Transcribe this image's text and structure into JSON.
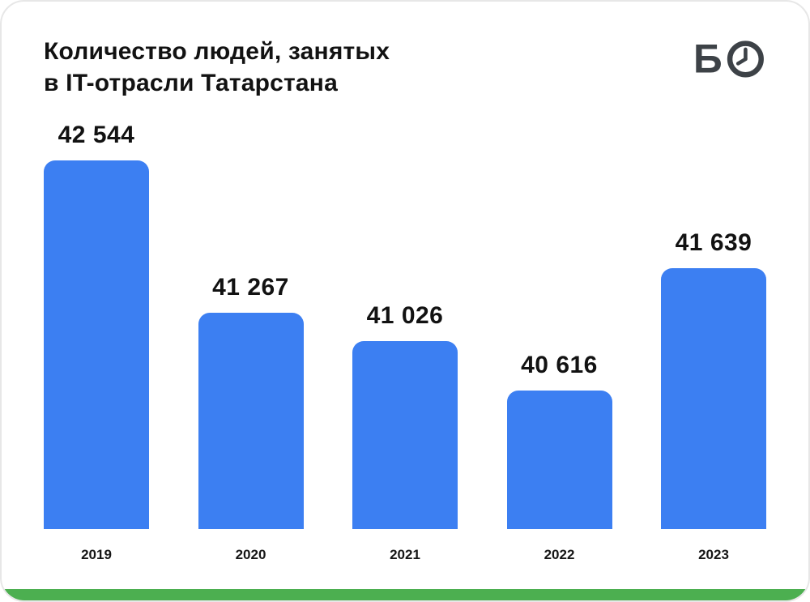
{
  "header": {
    "title_line1": "Количество людей, занятых",
    "title_line2": "в IT-отрасли Татарстана"
  },
  "logo": {
    "letter": "Б",
    "name": "БО"
  },
  "colors": {
    "bar": "#3C7FF2",
    "accent_green": "#4CAF50",
    "text": "#121212",
    "logo": "#3D4247"
  },
  "chart_data": {
    "type": "bar",
    "title": "Количество людей, занятых в IT-отрасли Татарстана",
    "categories": [
      "2019",
      "2020",
      "2021",
      "2022",
      "2023"
    ],
    "values": [
      42544,
      41267,
      41026,
      40616,
      41639
    ],
    "value_labels": [
      "42 544",
      "41 267",
      "41 026",
      "40 616",
      "41 639"
    ],
    "xlabel": "",
    "ylabel": "",
    "ylim": [
      39450,
      42600
    ],
    "grid": false,
    "legend": false,
    "bar_color": "#3C7FF2"
  }
}
